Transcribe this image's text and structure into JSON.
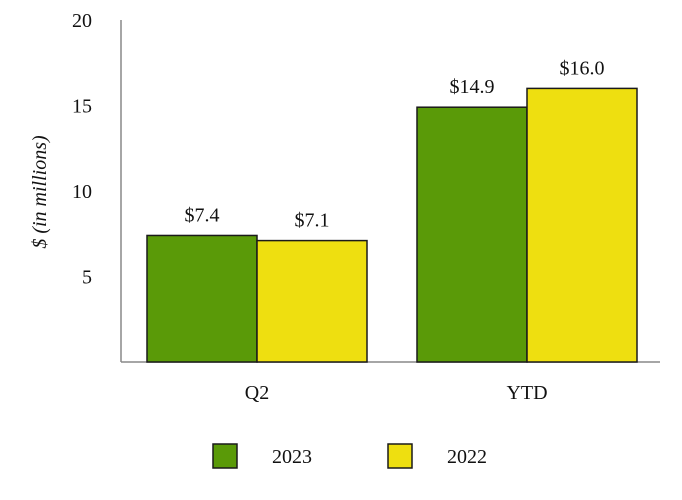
{
  "chart_data": {
    "type": "bar",
    "title": "",
    "xlabel": "",
    "ylabel": "$ (in millions)",
    "categories": [
      "Q2",
      "YTD"
    ],
    "series": [
      {
        "name": "2023",
        "values": [
          7.4,
          14.9
        ],
        "labels": [
          "$7.4",
          "$14.9"
        ],
        "color": "#5a9a08"
      },
      {
        "name": "2022",
        "values": [
          7.1,
          16.0
        ],
        "labels": [
          "$7.1",
          "$16.0"
        ],
        "color": "#eedf10"
      }
    ],
    "ylim": [
      0,
      20
    ],
    "yticks": [
      5,
      10,
      15,
      20
    ],
    "grid": false,
    "legend": "bottom-center"
  }
}
